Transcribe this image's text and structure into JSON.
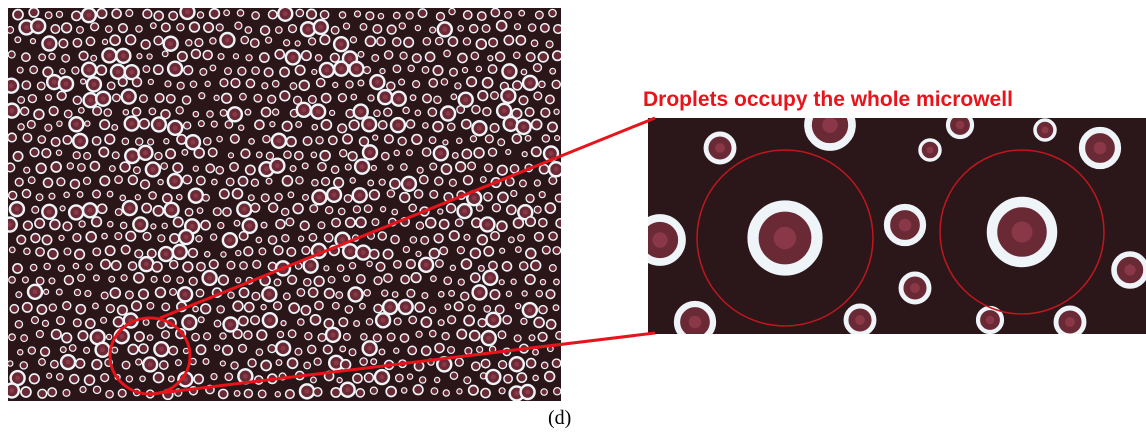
{
  "annotation": "Droplets occupy the whole microwell",
  "caption": "(d)"
}
